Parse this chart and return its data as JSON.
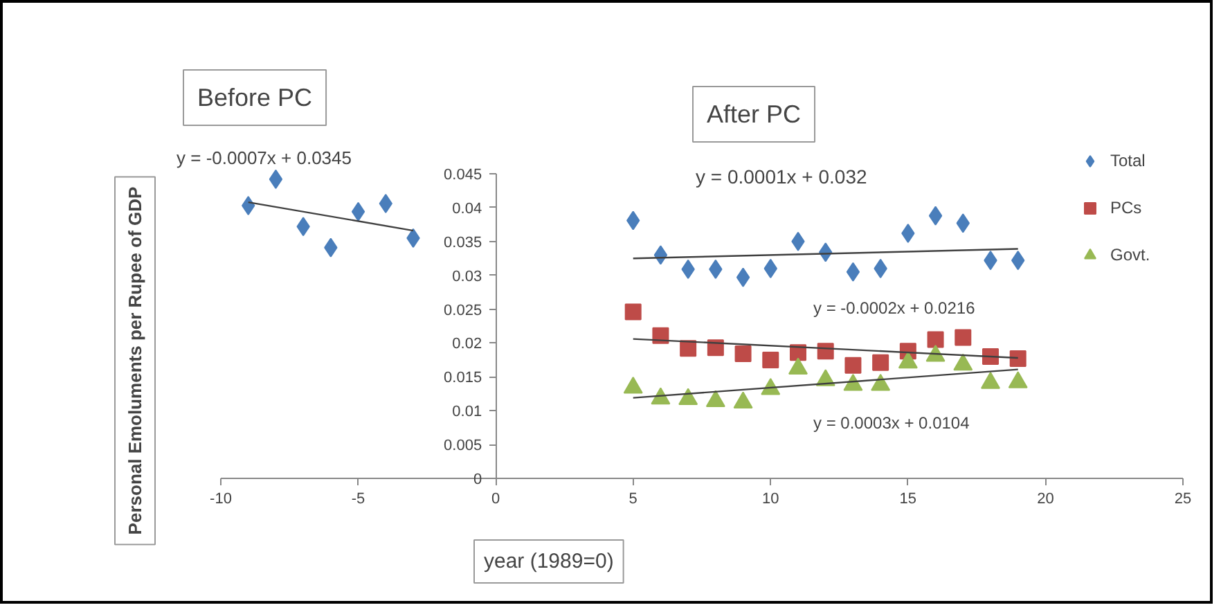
{
  "chart_data": {
    "type": "scatter",
    "xlabel": "year (1989=0)",
    "ylabel": "Personal Emoluments per Rupee of GDP",
    "xlim": [
      -10,
      25
    ],
    "xticks": [
      -10,
      -5,
      0,
      5,
      10,
      15,
      20,
      25
    ],
    "ylim": [
      0,
      0.045
    ],
    "yticks": [
      0,
      0.005,
      0.01,
      0.015,
      0.02,
      0.025,
      0.03,
      0.035,
      0.04,
      0.045
    ],
    "grid": false,
    "legend": "top right",
    "series": [
      {
        "marker": "diamond",
        "color": "#4a7ebb",
        "x": [
          -9,
          -8,
          -7,
          -6,
          -5,
          -4,
          -3
        ],
        "values": [
          0.0403,
          0.0442,
          0.0372,
          0.0341,
          0.0394,
          0.0406,
          0.0355
        ]
      },
      {
        "name": "Total",
        "marker": "diamond",
        "color": "#4a7ebb",
        "x": [
          5,
          6,
          7,
          8,
          9,
          10,
          11,
          12,
          13,
          14,
          15,
          16,
          17,
          18,
          19
        ],
        "values": [
          0.0381,
          0.033,
          0.0309,
          0.0309,
          0.0297,
          0.031,
          0.035,
          0.0334,
          0.0305,
          0.031,
          0.0362,
          0.0388,
          0.0377,
          0.0322,
          0.0322
        ]
      },
      {
        "name": "PCs",
        "marker": "square",
        "color": "#be4b48",
        "x": [
          5,
          6,
          7,
          8,
          9,
          10,
          11,
          12,
          13,
          14,
          15,
          16,
          17,
          18,
          19
        ],
        "values": [
          0.0246,
          0.0211,
          0.0192,
          0.0193,
          0.0184,
          0.0175,
          0.0186,
          0.0188,
          0.0167,
          0.0171,
          0.0188,
          0.0205,
          0.0208,
          0.018,
          0.0177
        ]
      },
      {
        "name": "Govt.",
        "marker": "triangle",
        "color": "#98b954",
        "x": [
          5,
          6,
          7,
          8,
          9,
          10,
          11,
          12,
          13,
          14,
          15,
          16,
          17,
          18,
          19
        ],
        "values": [
          0.0134,
          0.0118,
          0.0117,
          0.0114,
          0.0112,
          0.0132,
          0.0162,
          0.0145,
          0.0138,
          0.0138,
          0.0171,
          0.0181,
          0.0168,
          0.0141,
          0.0142
        ]
      },
      {
        "type": "line",
        "color": "#404040",
        "x": [
          -9,
          -3
        ],
        "values": [
          0.0408,
          0.0366
        ]
      },
      {
        "type": "line",
        "color": "#404040",
        "x": [
          5,
          19
        ],
        "values": [
          0.0325,
          0.0339
        ]
      },
      {
        "type": "line",
        "color": "#404040",
        "x": [
          5,
          19
        ],
        "values": [
          0.0206,
          0.0178
        ]
      },
      {
        "type": "line",
        "color": "#404040",
        "x": [
          5,
          19
        ],
        "values": [
          0.0119,
          0.0161
        ]
      }
    ],
    "annotations": [
      "Before PC",
      "After PC",
      "y = -0.0007x + 0.0345",
      "y = 0.0001x + 0.032",
      "y = -0.0002x + 0.0216",
      "y = 0.0003x + 0.0104"
    ]
  }
}
